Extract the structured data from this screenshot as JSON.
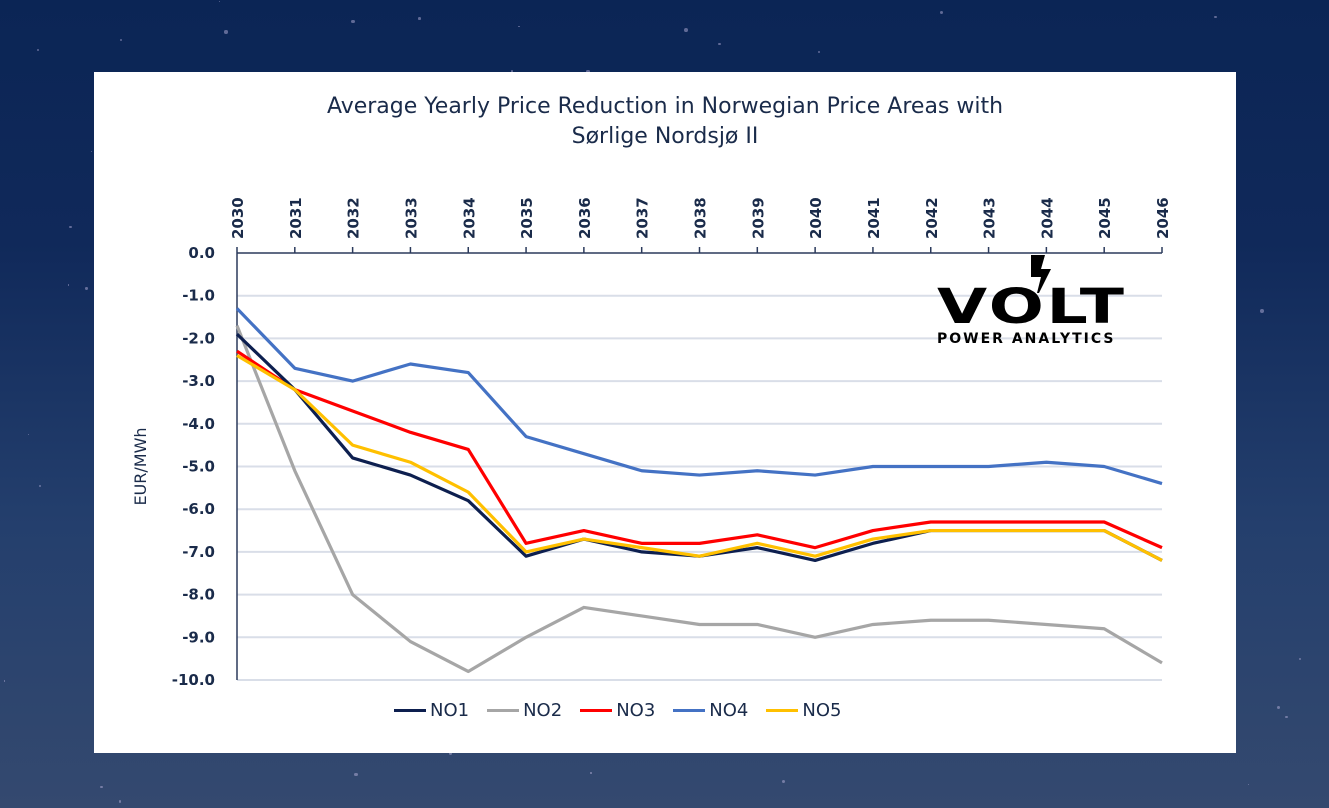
{
  "colors": {
    "background": "#0f2a5c",
    "card": "#ffffff",
    "text": "#1a2b4a",
    "gridline": "#d9dee8",
    "axis": "#2b3a5c"
  },
  "logo": {
    "word": "VOLT",
    "subtitle": "POWER ANALYTICS",
    "icon": "lightning-bolt-icon"
  },
  "chart_data": {
    "type": "line",
    "title": "Average Yearly Price Reduction in Norwegian Price Areas with Sørlige Nordsjø II",
    "title_lines": [
      "Average Yearly Price Reduction in Norwegian Price Areas with",
      "Sørlige Nordsjø II"
    ],
    "xlabel": "",
    "ylabel": "EUR/MWh",
    "x": [
      "2030",
      "2031",
      "2032",
      "2033",
      "2034",
      "2035",
      "2036",
      "2037",
      "2038",
      "2039",
      "2040",
      "2041",
      "2042",
      "2043",
      "2044",
      "2045",
      "2046"
    ],
    "x_axis_position": "top",
    "x_tick_rotation": -90,
    "ylim": [
      -10.0,
      0.0
    ],
    "y_ticks": [
      "0.0",
      "-1.0",
      "-2.0",
      "-3.0",
      "-4.0",
      "-5.0",
      "-6.0",
      "-7.0",
      "-8.0",
      "-9.0",
      "-10.0"
    ],
    "grid": true,
    "legend_position": "bottom",
    "series": [
      {
        "name": "NO1",
        "color": "#0d1f4f",
        "values": [
          -1.9,
          -3.2,
          -4.8,
          -5.2,
          -5.8,
          -7.1,
          -6.7,
          -7.0,
          -7.1,
          -6.9,
          -7.2,
          -6.8,
          -6.5,
          -6.5,
          -6.5,
          -6.5,
          -7.2
        ]
      },
      {
        "name": "NO2",
        "color": "#a6a6a6",
        "values": [
          -1.7,
          -5.1,
          -8.0,
          -9.1,
          -9.8,
          -9.0,
          -8.3,
          -8.5,
          -8.7,
          -8.7,
          -9.0,
          -8.7,
          -8.6,
          -8.6,
          -8.7,
          -8.8,
          -9.6
        ]
      },
      {
        "name": "NO3",
        "color": "#ff0000",
        "values": [
          -2.3,
          -3.2,
          -3.7,
          -4.2,
          -4.6,
          -6.8,
          -6.5,
          -6.8,
          -6.8,
          -6.6,
          -6.9,
          -6.5,
          -6.3,
          -6.3,
          -6.3,
          -6.3,
          -6.9
        ]
      },
      {
        "name": "NO4",
        "color": "#4472c4",
        "values": [
          -1.3,
          -2.7,
          -3.0,
          -2.6,
          -2.8,
          -4.3,
          -4.7,
          -5.1,
          -5.2,
          -5.1,
          -5.2,
          -5.0,
          -5.0,
          -5.0,
          -4.9,
          -5.0,
          -5.4
        ]
      },
      {
        "name": "NO5",
        "color": "#ffc000",
        "values": [
          -2.4,
          -3.2,
          -4.5,
          -4.9,
          -5.6,
          -7.0,
          -6.7,
          -6.9,
          -7.1,
          -6.8,
          -7.1,
          -6.7,
          -6.5,
          -6.5,
          -6.5,
          -6.5,
          -7.2
        ]
      }
    ]
  }
}
